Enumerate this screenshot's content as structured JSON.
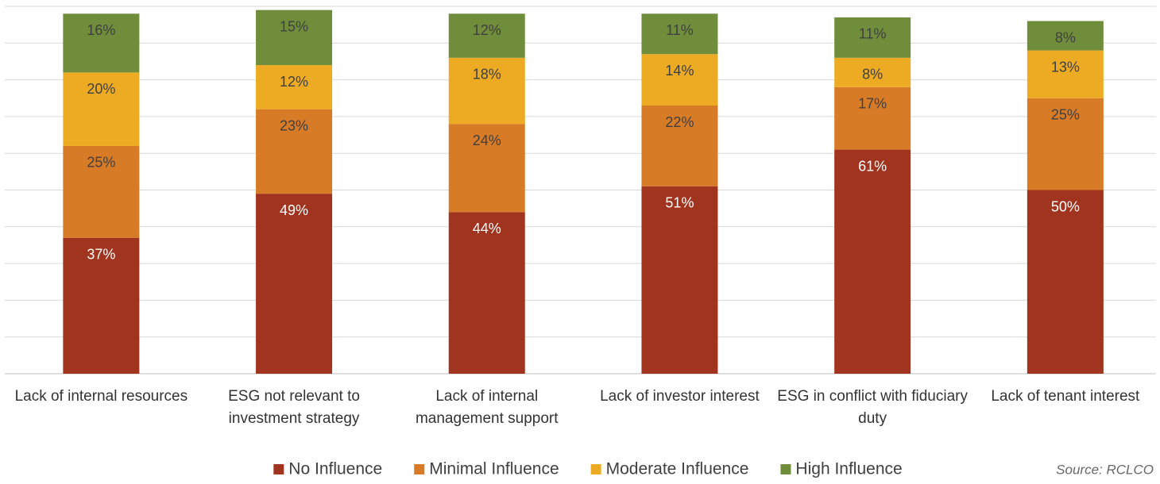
{
  "chart_data": {
    "type": "bar",
    "stacked": true,
    "categories": [
      "Lack of internal resources",
      "ESG not relevant to investment strategy",
      "Lack of internal management support",
      "Lack of investor interest",
      "ESG in conflict with fiduciary duty",
      "Lack of tenant interest"
    ],
    "series": [
      {
        "name": "No Influence",
        "color": "#a0341f",
        "values": [
          37,
          49,
          44,
          51,
          61,
          50
        ],
        "value_labels": [
          "37%",
          "49%",
          "44%",
          "51%",
          "61%",
          "50%"
        ]
      },
      {
        "name": "Minimal Influence",
        "color": "#d87b27",
        "values": [
          25,
          23,
          24,
          22,
          17,
          25
        ],
        "value_labels": [
          "25%",
          "23%",
          "24%",
          "22%",
          "17%",
          "25%"
        ]
      },
      {
        "name": "Moderate Influence",
        "color": "#ecab23",
        "values": [
          20,
          12,
          18,
          14,
          8,
          13
        ],
        "value_labels": [
          "20%",
          "12%",
          "18%",
          "14%",
          "8%",
          "13%"
        ]
      },
      {
        "name": "High Influence",
        "color": "#6f8d3a",
        "values": [
          16,
          15,
          12,
          11,
          11,
          8
        ],
        "value_labels": [
          "16%",
          "15%",
          "12%",
          "11%",
          "11%",
          "8%"
        ]
      }
    ],
    "ylim": [
      0,
      100
    ],
    "yticks": [
      0,
      10,
      20,
      30,
      40,
      50,
      60,
      70,
      80,
      90,
      100
    ],
    "grid": true,
    "legend": "bottom",
    "source": "Source: RCLCO"
  }
}
